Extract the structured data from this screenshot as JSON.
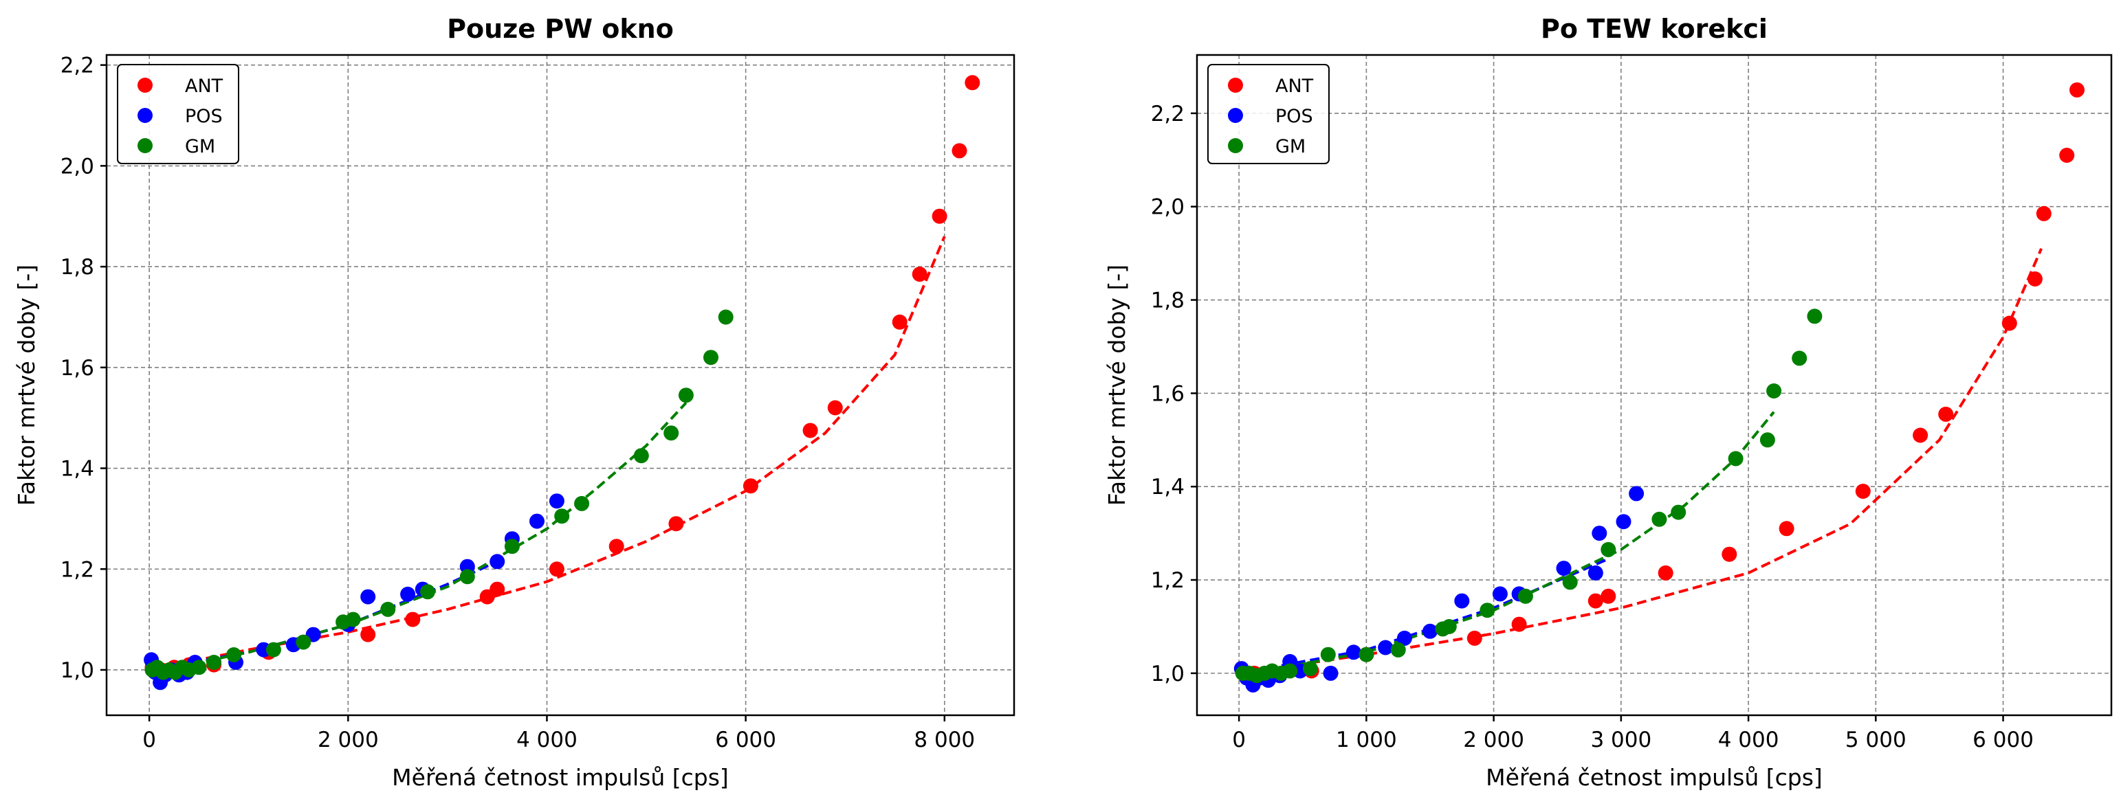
{
  "colors": {
    "ANT": "#ff0000",
    "POS": "#0000ff",
    "GM": "#008000",
    "grid": "#808080",
    "axes": "#000000"
  },
  "chart_data": [
    {
      "type": "scatter",
      "title": "Pouze PW okno",
      "xlabel": "Měřená četnost impulsů [cps]",
      "ylabel": "Faktor mrtvé doby [-]",
      "xlim": [
        -430,
        8700
      ],
      "ylim": [
        0.91,
        2.22
      ],
      "xticks": [
        0,
        2000,
        4000,
        6000,
        8000
      ],
      "xtick_labels": [
        "0",
        "2 000",
        "4 000",
        "6 000",
        "8 000"
      ],
      "yticks": [
        1.0,
        1.2,
        1.4,
        1.6,
        1.8,
        2.0,
        2.2
      ],
      "ytick_labels": [
        "1,0",
        "1,2",
        "1,4",
        "1,6",
        "1,8",
        "2,0",
        "2,2"
      ],
      "grid": true,
      "legend": "top-left",
      "series": [
        {
          "name": "ANT",
          "color": "#ff0000",
          "x": [
            30,
            120,
            250,
            400,
            650,
            1200,
            2200,
            2650,
            3400,
            3500,
            4100,
            4700,
            5300,
            6050,
            6650,
            6900,
            7550,
            7750,
            7950,
            8150,
            8280
          ],
          "y": [
            1.005,
            1.0,
            1.005,
            1.01,
            1.01,
            1.035,
            1.07,
            1.1,
            1.145,
            1.16,
            1.2,
            1.245,
            1.29,
            1.365,
            1.475,
            1.52,
            1.69,
            1.785,
            1.9,
            2.03,
            2.165
          ],
          "fit": {
            "x": [
              0,
              1000,
              2000,
              3000,
              4000,
              5000,
              6000,
              6800,
              7500,
              8000
            ],
            "y": [
              1.0,
              1.04,
              1.075,
              1.12,
              1.175,
              1.255,
              1.355,
              1.47,
              1.625,
              1.86
            ]
          }
        },
        {
          "name": "POS",
          "color": "#0000ff",
          "x": [
            20,
            60,
            110,
            160,
            220,
            300,
            380,
            460,
            870,
            1150,
            1450,
            1650,
            2000,
            2200,
            2600,
            2750,
            3200,
            3500,
            3650,
            3900,
            4100
          ],
          "y": [
            1.02,
            0.995,
            0.975,
            0.99,
            1.0,
            0.99,
            0.995,
            1.015,
            1.015,
            1.04,
            1.05,
            1.07,
            1.09,
            1.145,
            1.15,
            1.16,
            1.205,
            1.215,
            1.26,
            1.295,
            1.335
          ],
          "fit": {
            "x": [
              0,
              1000,
              2000,
              3000,
              3500
            ],
            "y": [
              1.0,
              1.035,
              1.09,
              1.17,
              1.215
            ]
          }
        },
        {
          "name": "GM",
          "color": "#008000",
          "x": [
            30,
            80,
            140,
            200,
            260,
            330,
            400,
            500,
            650,
            850,
            1250,
            1550,
            1950,
            2050,
            2400,
            2800,
            3200,
            3650,
            4150,
            4350,
            4950,
            5250,
            5400,
            5650,
            5800
          ],
          "y": [
            1.0,
            1.005,
            0.995,
            1.0,
            0.995,
            1.005,
            1.0,
            1.005,
            1.015,
            1.03,
            1.04,
            1.055,
            1.095,
            1.1,
            1.12,
            1.155,
            1.185,
            1.245,
            1.305,
            1.33,
            1.425,
            1.47,
            1.545,
            1.62,
            1.7
          ],
          "fit": {
            "x": [
              0,
              1000,
              2000,
              3000,
              4000,
              4500,
              5000,
              5400
            ],
            "y": [
              0.995,
              1.035,
              1.09,
              1.165,
              1.28,
              1.36,
              1.445,
              1.53
            ]
          }
        }
      ]
    },
    {
      "type": "scatter",
      "title": "Po TEW korekci",
      "xlabel": "Měřená četnost impulsů [cps]",
      "ylabel": "Faktor mrtvé doby [-]",
      "xlim": [
        -330,
        6850
      ],
      "ylim": [
        0.91,
        2.325
      ],
      "xticks": [
        0,
        1000,
        2000,
        3000,
        4000,
        5000,
        6000
      ],
      "xtick_labels": [
        "0",
        "1 000",
        "2 000",
        "3 000",
        "4 000",
        "5 000",
        "6 000"
      ],
      "yticks": [
        1.0,
        1.2,
        1.4,
        1.6,
        1.8,
        2.0,
        2.2
      ],
      "ytick_labels": [
        "1,0",
        "1,2",
        "1,4",
        "1,6",
        "1,8",
        "2,0",
        "2,2"
      ],
      "grid": true,
      "legend": "top-left",
      "series": [
        {
          "name": "ANT",
          "color": "#ff0000",
          "x": [
            30,
            120,
            250,
            400,
            570,
            1000,
            1850,
            2200,
            2800,
            2900,
            3350,
            3850,
            4300,
            4900,
            5350,
            5550,
            6050,
            6250,
            6320,
            6500,
            6580
          ],
          "y": [
            1.005,
            1.0,
            1.0,
            1.005,
            1.005,
            1.04,
            1.075,
            1.105,
            1.155,
            1.165,
            1.215,
            1.255,
            1.31,
            1.39,
            1.51,
            1.555,
            1.75,
            1.845,
            1.985,
            2.11,
            2.25
          ],
          "fit": {
            "x": [
              0,
              1000,
              2000,
              3000,
              4000,
              4800,
              5500,
              6000,
              6300
            ],
            "y": [
              1.0,
              1.04,
              1.085,
              1.14,
              1.215,
              1.32,
              1.5,
              1.72,
              1.91
            ]
          }
        },
        {
          "name": "POS",
          "color": "#0000ff",
          "x": [
            20,
            60,
            110,
            160,
            230,
            320,
            400,
            480,
            720,
            900,
            1150,
            1300,
            1500,
            1750,
            2050,
            2200,
            2550,
            2800,
            2830,
            3020,
            3120
          ],
          "y": [
            1.01,
            0.99,
            0.975,
            0.99,
            0.985,
            0.995,
            1.025,
            1.005,
            1.0,
            1.045,
            1.055,
            1.075,
            1.09,
            1.155,
            1.17,
            1.17,
            1.225,
            1.215,
            1.3,
            1.325,
            1.385
          ],
          "fit": {
            "x": [
              0,
              1000,
              2000,
              2900
            ],
            "y": [
              1.0,
              1.05,
              1.14,
              1.245
            ]
          }
        },
        {
          "name": "GM",
          "color": "#008000",
          "x": [
            30,
            80,
            140,
            200,
            260,
            330,
            400,
            560,
            700,
            1000,
            1250,
            1600,
            1650,
            1950,
            2250,
            2600,
            2900,
            3300,
            3450,
            3900,
            4150,
            4200,
            4400,
            4520
          ],
          "y": [
            1.0,
            1.0,
            0.995,
            1.0,
            1.005,
            1.0,
            1.005,
            1.01,
            1.04,
            1.04,
            1.05,
            1.095,
            1.1,
            1.135,
            1.165,
            1.195,
            1.265,
            1.33,
            1.345,
            1.46,
            1.5,
            1.605,
            1.675,
            1.765
          ],
          "fit": {
            "x": [
              0,
              1000,
              2000,
              3000,
              3500,
              3900,
              4200
            ],
            "y": [
              0.995,
              1.045,
              1.135,
              1.265,
              1.36,
              1.46,
              1.56
            ]
          }
        }
      ]
    }
  ]
}
